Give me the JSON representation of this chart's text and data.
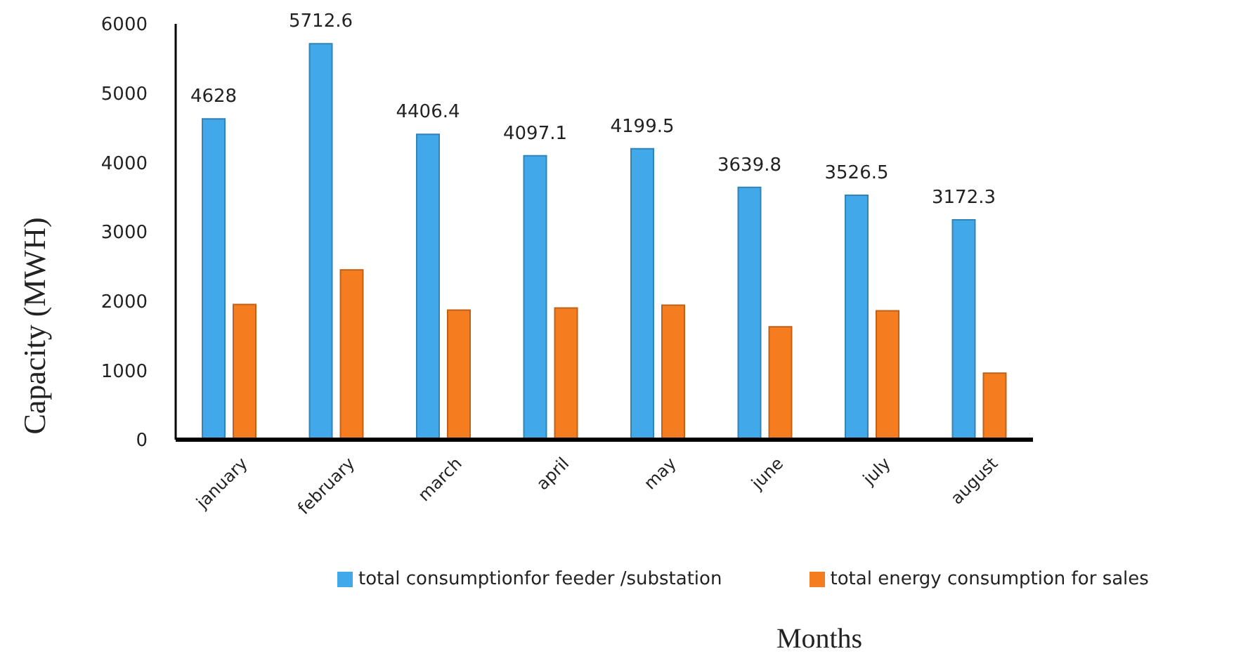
{
  "chart_data": {
    "type": "bar",
    "xlabel": "Months",
    "ylabel": "Capacity (MWH)",
    "categories": [
      "january",
      "february",
      "march",
      "april",
      "may",
      "june",
      "july",
      "august"
    ],
    "series": [
      {
        "name": "total consumptionfor feeder /substation",
        "color": "#41a8ea",
        "values": [
          4628,
          5712.6,
          4406.4,
          4097.1,
          4199.5,
          3639.8,
          3526.5,
          3172.3
        ],
        "value_labels": [
          "4628",
          "5712.6",
          "4406.4",
          "4097.1",
          "4199.5",
          "3639.8",
          "3526.5",
          "3172.3"
        ]
      },
      {
        "name": "total energy consumption for sales",
        "color": "#f57d20",
        "values": [
          1950,
          2450,
          1870,
          1900,
          1940,
          1630,
          1860,
          960
        ]
      }
    ],
    "ylim": [
      0,
      6000
    ],
    "yticks": [
      0,
      1000,
      2000,
      3000,
      4000,
      5000,
      6000
    ],
    "legend": "bottom"
  }
}
